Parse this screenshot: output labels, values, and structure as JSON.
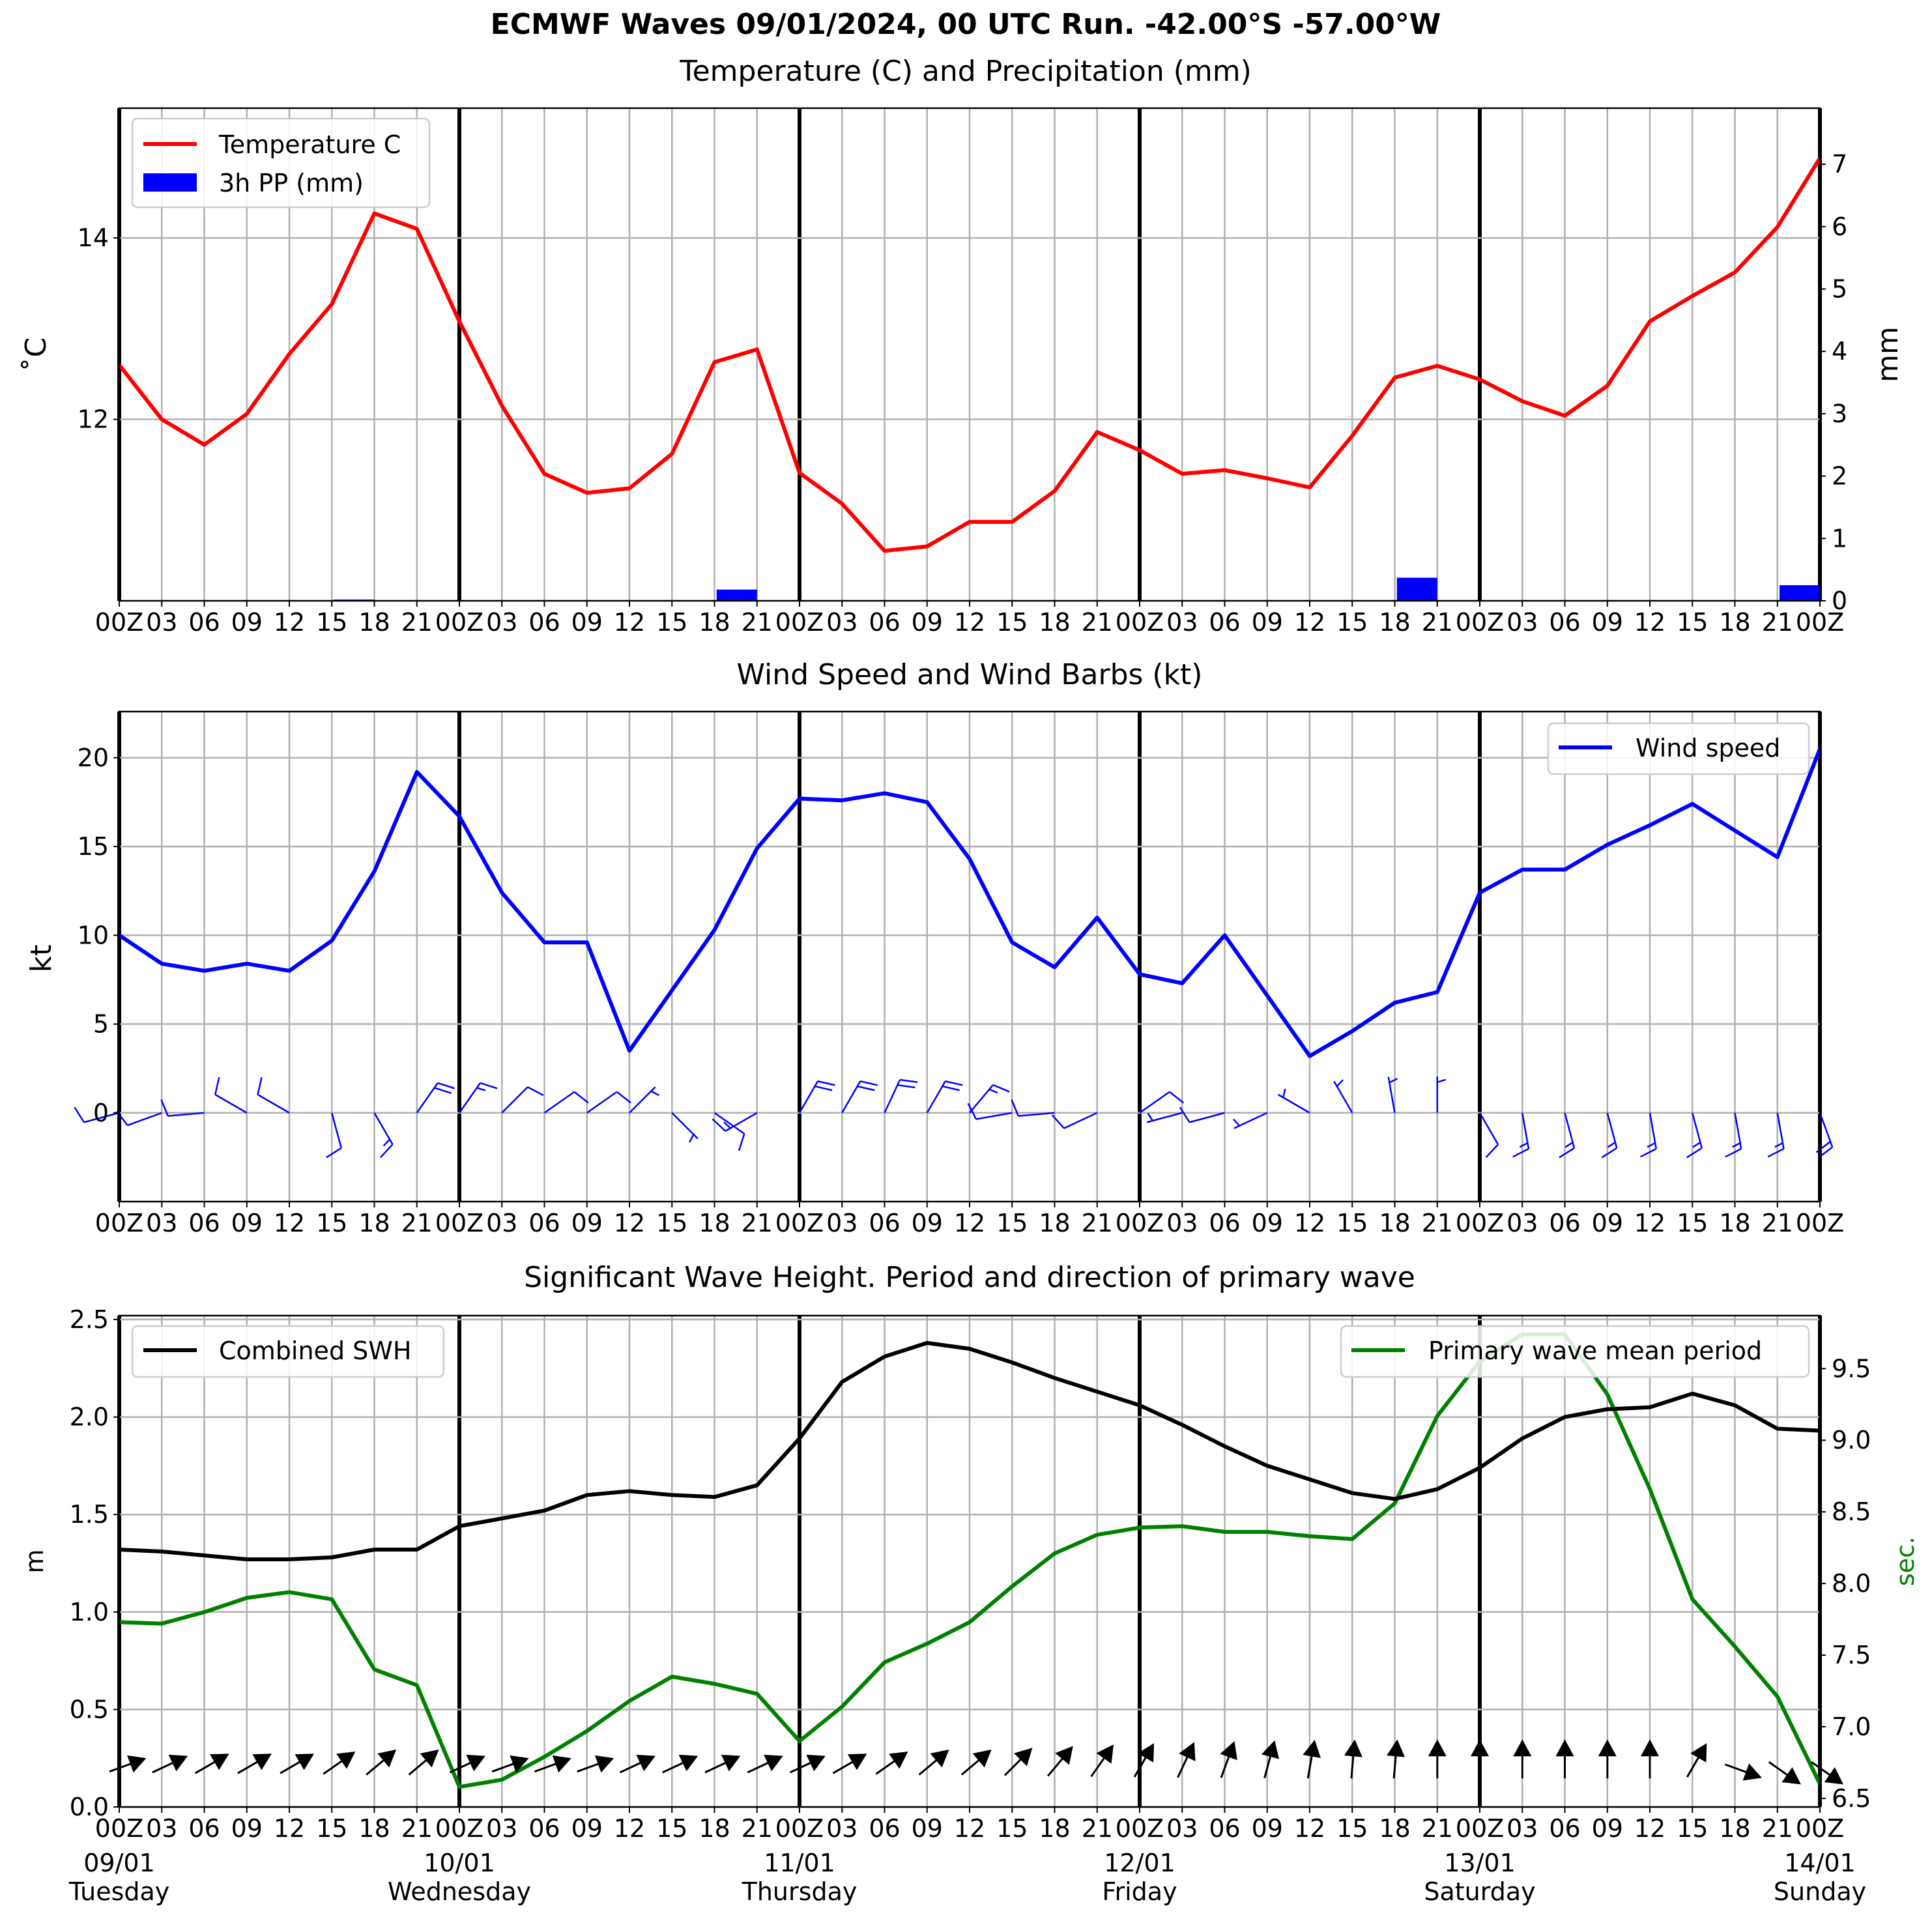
{
  "figure": {
    "title": "ECMWF Waves 09/01/2024, 00 UTC Run. -42.00°S -57.00°W"
  },
  "x_axis": {
    "hour_ticks": [
      "00Z",
      "03",
      "06",
      "09",
      "12",
      "15",
      "18",
      "21",
      "00Z",
      "03",
      "06",
      "09",
      "12",
      "15",
      "18",
      "21",
      "00Z",
      "03",
      "06",
      "09",
      "12",
      "15",
      "18",
      "21",
      "00Z",
      "03",
      "06",
      "09",
      "12",
      "15",
      "18",
      "21",
      "00Z",
      "03",
      "06",
      "09",
      "12",
      "15",
      "18",
      "21",
      "00Z"
    ],
    "day_labels": [
      {
        "date": "09/01",
        "weekday": "Tuesday"
      },
      {
        "date": "10/01",
        "weekday": "Wednesday"
      },
      {
        "date": "11/01",
        "weekday": "Thursday"
      },
      {
        "date": "12/01",
        "weekday": "Friday"
      },
      {
        "date": "13/01",
        "weekday": "Saturday"
      },
      {
        "date": "14/01",
        "weekday": "Sunday"
      }
    ]
  },
  "colors": {
    "temperature": "#ff0000",
    "precipitation": "#0000ff",
    "wind": "#0000ff",
    "swh": "#000000",
    "period": "#008000",
    "grid": "#b0b0b0",
    "day_line": "#000000"
  },
  "chart_data": [
    {
      "type": "line",
      "title": "Temperature (C) and Precipitation (mm)",
      "ylabel": "˚C",
      "ylabel_right": "mm",
      "x": [
        "2024-01-09 00Z",
        "03",
        "06",
        "09",
        "12",
        "15",
        "18",
        "21",
        "2024-01-10 00Z",
        "03",
        "06",
        "09",
        "12",
        "15",
        "18",
        "21",
        "2024-01-11 00Z",
        "03",
        "06",
        "09",
        "12",
        "15",
        "18",
        "21",
        "2024-01-12 00Z",
        "03",
        "06",
        "09",
        "12",
        "15",
        "18",
        "21",
        "2024-01-13 00Z",
        "03",
        "06",
        "09",
        "12",
        "15",
        "18",
        "21",
        "2024-01-14 00Z"
      ],
      "ylim": [
        10.0,
        15.43
      ],
      "yticks": [
        12,
        14
      ],
      "ylim_right": [
        0,
        7.9
      ],
      "yticks_right": [
        0,
        1,
        2,
        3,
        4,
        5,
        6,
        7
      ],
      "legend": {
        "placement": "top-left",
        "entries": [
          "Temperature C",
          "3h PP (mm)"
        ]
      },
      "series": [
        {
          "name": "Temperature C",
          "axis": "left",
          "values": [
            12.6,
            12.0,
            11.72,
            12.06,
            12.72,
            13.27,
            14.27,
            14.1,
            13.08,
            12.15,
            11.4,
            11.19,
            11.24,
            11.62,
            12.63,
            12.77,
            11.41,
            11.07,
            10.55,
            10.6,
            10.87,
            10.87,
            11.21,
            11.86,
            11.66,
            11.4,
            11.44,
            11.35,
            11.25,
            11.82,
            12.46,
            12.59,
            12.44,
            12.2,
            12.04,
            12.37,
            13.08,
            13.36,
            13.62,
            14.12,
            14.88
          ]
        },
        {
          "name": "3h PP (mm)",
          "type": "bar",
          "axis": "right",
          "values": [
            0,
            0,
            0,
            0,
            0,
            0,
            0.02,
            0,
            0,
            0,
            0,
            0,
            0,
            0,
            0,
            0.18,
            0,
            0,
            0,
            0,
            0,
            0,
            0,
            0,
            0,
            0,
            0,
            0,
            0,
            0,
            0,
            0.37,
            0,
            0,
            0,
            0,
            0,
            0,
            0,
            0,
            0.25
          ]
        }
      ]
    },
    {
      "type": "line",
      "title": "Wind Speed and Wind Barbs (kt)",
      "ylabel": "kt",
      "x": [
        "2024-01-09 00Z",
        "03",
        "06",
        "09",
        "12",
        "15",
        "18",
        "21",
        "2024-01-10 00Z",
        "03",
        "06",
        "09",
        "12",
        "15",
        "18",
        "21",
        "2024-01-11 00Z",
        "03",
        "06",
        "09",
        "12",
        "15",
        "18",
        "21",
        "2024-01-12 00Z",
        "03",
        "06",
        "09",
        "12",
        "15",
        "18",
        "21",
        "2024-01-13 00Z",
        "03",
        "06",
        "09",
        "12",
        "15",
        "18",
        "21",
        "2024-01-14 00Z"
      ],
      "ylim": [
        -5,
        22.6
      ],
      "yticks": [
        0,
        5,
        10,
        15,
        20
      ],
      "legend": {
        "placement": "top-right",
        "entries": [
          "Wind speed"
        ]
      },
      "series": [
        {
          "name": "Wind speed",
          "values": [
            10.0,
            8.4,
            8.0,
            8.4,
            8.0,
            9.7,
            13.6,
            19.2,
            16.7,
            12.4,
            9.6,
            9.6,
            3.5,
            6.9,
            10.3,
            14.9,
            17.7,
            17.6,
            18.0,
            17.5,
            14.3,
            9.6,
            8.2,
            11.0,
            7.8,
            7.3,
            10.0,
            6.6,
            3.2,
            4.6,
            6.2,
            6.8,
            12.4,
            13.7,
            13.7,
            15.1,
            16.2,
            17.4,
            15.9,
            14.4,
            20.5
          ]
        }
      ],
      "wind_barbs": {
        "y_level": 0,
        "speed_kt": [
          10.0,
          8.4,
          8.0,
          8.4,
          8.0,
          9.7,
          13.6,
          19.2,
          16.7,
          12.4,
          9.6,
          9.6,
          3.5,
          6.9,
          10.3,
          14.9,
          17.7,
          17.6,
          18.0,
          17.5,
          14.3,
          9.6,
          8.2,
          11.0,
          7.8,
          7.3,
          10.0,
          6.6,
          3.2,
          4.6,
          6.2,
          6.8,
          12.4,
          13.7,
          13.7,
          15.1,
          16.2,
          17.4,
          15.9,
          14.4,
          20.5
        ],
        "direction_deg": [
          255,
          250,
          265,
          300,
          300,
          165,
          150,
          35,
          35,
          45,
          55,
          55,
          45,
          135,
          125,
          240,
          30,
          30,
          25,
          30,
          40,
          260,
          265,
          245,
          55,
          255,
          255,
          245,
          300,
          330,
          350,
          0,
          150,
          170,
          165,
          165,
          170,
          165,
          170,
          170,
          160
        ]
      }
    },
    {
      "type": "line",
      "title": "Significant Wave Height. Period and direction of primary wave",
      "ylabel": "m",
      "ylabel_right": "sec.",
      "x": [
        "2024-01-09 00Z",
        "03",
        "06",
        "09",
        "12",
        "15",
        "18",
        "21",
        "2024-01-10 00Z",
        "03",
        "06",
        "09",
        "12",
        "15",
        "18",
        "21",
        "2024-01-11 00Z",
        "03",
        "06",
        "09",
        "12",
        "15",
        "18",
        "21",
        "2024-01-12 00Z",
        "03",
        "06",
        "09",
        "12",
        "15",
        "18",
        "21",
        "2024-01-13 00Z",
        "03",
        "06",
        "09",
        "12",
        "15",
        "18",
        "21",
        "2024-01-14 00Z"
      ],
      "ylim": [
        0.0,
        2.52
      ],
      "yticks": [
        0.0,
        0.5,
        1.0,
        1.5,
        2.0,
        2.5
      ],
      "ylim_right": [
        6.44,
        9.87
      ],
      "yticks_right": [
        6.5,
        7.0,
        7.5,
        8.0,
        8.5,
        9.0,
        9.5
      ],
      "legend": [
        {
          "placement": "top-left",
          "entries": [
            "Combined SWH"
          ]
        },
        {
          "placement": "top-right",
          "entries": [
            "Primary wave mean period"
          ]
        }
      ],
      "series": [
        {
          "name": "Combined SWH",
          "axis": "left",
          "values": [
            1.32,
            1.31,
            1.29,
            1.27,
            1.27,
            1.28,
            1.32,
            1.32,
            1.44,
            1.48,
            1.52,
            1.6,
            1.62,
            1.6,
            1.59,
            1.65,
            1.89,
            2.18,
            2.31,
            2.38,
            2.35,
            2.28,
            2.2,
            2.13,
            2.06,
            1.96,
            1.85,
            1.75,
            1.68,
            1.61,
            1.58,
            1.63,
            1.74,
            1.89,
            2.0,
            2.04,
            2.05,
            2.12,
            2.06,
            1.94,
            1.93
          ]
        },
        {
          "name": "Primary wave mean period",
          "axis": "right",
          "values": [
            7.73,
            7.72,
            7.8,
            7.9,
            7.94,
            7.89,
            7.4,
            7.29,
            6.58,
            6.63,
            6.79,
            6.97,
            7.18,
            7.35,
            7.3,
            7.23,
            6.9,
            7.14,
            7.45,
            7.58,
            7.73,
            7.98,
            8.21,
            8.34,
            8.39,
            8.4,
            8.36,
            8.36,
            8.33,
            8.31,
            8.56,
            9.17,
            9.55,
            9.74,
            9.74,
            9.32,
            8.66,
            7.89,
            7.56,
            7.21,
            6.6
          ]
        }
      ],
      "wave_arrows": {
        "y_level": 0.2,
        "direction_deg": [
          70,
          65,
          60,
          60,
          60,
          55,
          50,
          50,
          65,
          70,
          70,
          70,
          65,
          65,
          65,
          65,
          65,
          60,
          55,
          50,
          50,
          45,
          40,
          35,
          30,
          25,
          20,
          15,
          10,
          5,
          5,
          0,
          0,
          0,
          0,
          0,
          0,
          30,
          110,
          125,
          125
        ]
      }
    }
  ]
}
